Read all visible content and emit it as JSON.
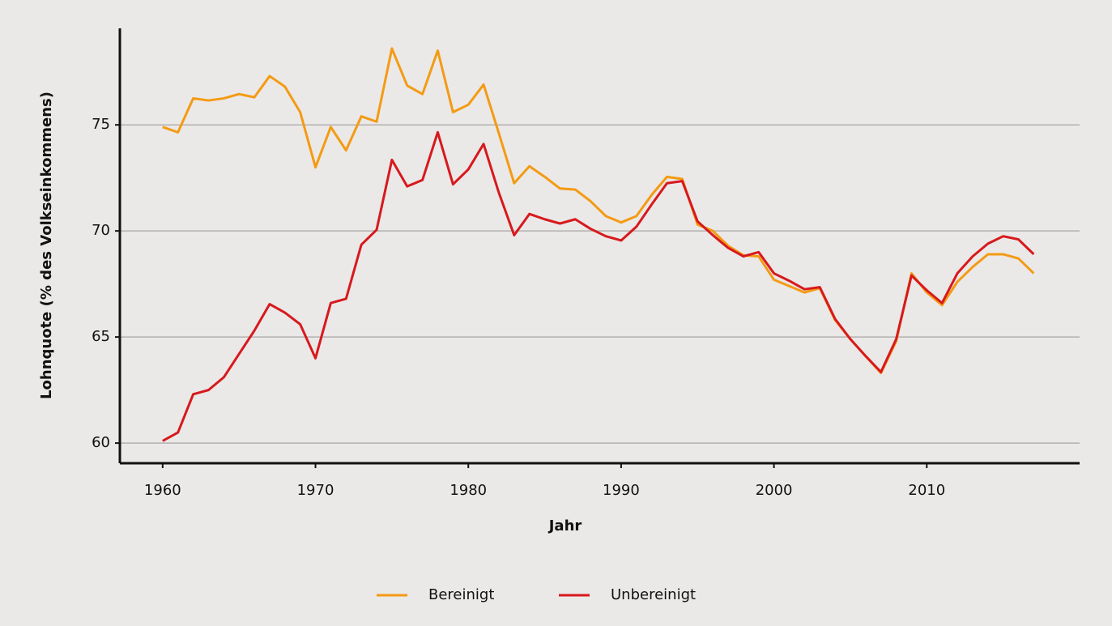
{
  "chart_data": {
    "type": "line",
    "x_label": "Jahr",
    "y_label": "Lohnquote (% des Volkseinkommens)",
    "x": [
      1960,
      1961,
      1962,
      1963,
      1964,
      1965,
      1966,
      1967,
      1968,
      1969,
      1970,
      1971,
      1972,
      1973,
      1974,
      1975,
      1976,
      1977,
      1978,
      1979,
      1980,
      1981,
      1982,
      1983,
      1984,
      1985,
      1986,
      1987,
      1988,
      1989,
      1990,
      1991,
      1992,
      1993,
      1994,
      1995,
      1996,
      1997,
      1998,
      1999,
      2000,
      2001,
      2002,
      2003,
      2004,
      2005,
      2006,
      2007,
      2008,
      2009,
      2010,
      2011,
      2012,
      2013,
      2014,
      2015,
      2016,
      2017
    ],
    "series": [
      {
        "name": "Bereinigt",
        "color": "#f39b13",
        "values": [
          74.9,
          74.65,
          76.25,
          76.15,
          76.25,
          76.45,
          76.3,
          77.3,
          76.8,
          75.6,
          73.0,
          74.9,
          73.8,
          75.4,
          75.15,
          78.6,
          76.85,
          76.45,
          78.5,
          75.6,
          75.95,
          76.9,
          74.6,
          72.25,
          73.05,
          72.55,
          72.0,
          71.95,
          71.4,
          70.7,
          70.4,
          70.7,
          71.7,
          72.55,
          72.45,
          70.3,
          70.0,
          69.3,
          68.85,
          68.8,
          67.7,
          67.4,
          67.1,
          67.3,
          65.8,
          64.9,
          64.1,
          63.3,
          64.8,
          68.0,
          67.1,
          66.5,
          67.6,
          68.3,
          68.9,
          68.9,
          68.7,
          68.0
        ]
      },
      {
        "name": "Unbereinigt",
        "color": "#d7191c",
        "values": [
          60.1,
          60.5,
          62.3,
          62.5,
          63.1,
          64.2,
          65.3,
          66.55,
          66.15,
          65.6,
          64.0,
          66.6,
          66.8,
          69.35,
          70.05,
          73.35,
          72.1,
          72.4,
          74.65,
          72.2,
          72.9,
          74.1,
          71.8,
          69.8,
          70.8,
          70.55,
          70.35,
          70.55,
          70.1,
          69.75,
          69.55,
          70.2,
          71.25,
          72.25,
          72.35,
          70.45,
          69.8,
          69.2,
          68.8,
          69.0,
          68.0,
          67.65,
          67.25,
          67.35,
          65.85,
          64.9,
          64.1,
          63.35,
          64.9,
          67.9,
          67.2,
          66.6,
          68.0,
          68.8,
          69.4,
          69.75,
          69.6,
          68.9
        ]
      }
    ],
    "xlim": [
      1957.2,
      2020
    ],
    "xticks": [
      1960,
      1970,
      1980,
      1990,
      2000,
      2010
    ],
    "ylim": [
      59.05,
      79.55
    ],
    "yticks": [
      60,
      65,
      70,
      75
    ],
    "grid": true,
    "legend": "bottom"
  }
}
